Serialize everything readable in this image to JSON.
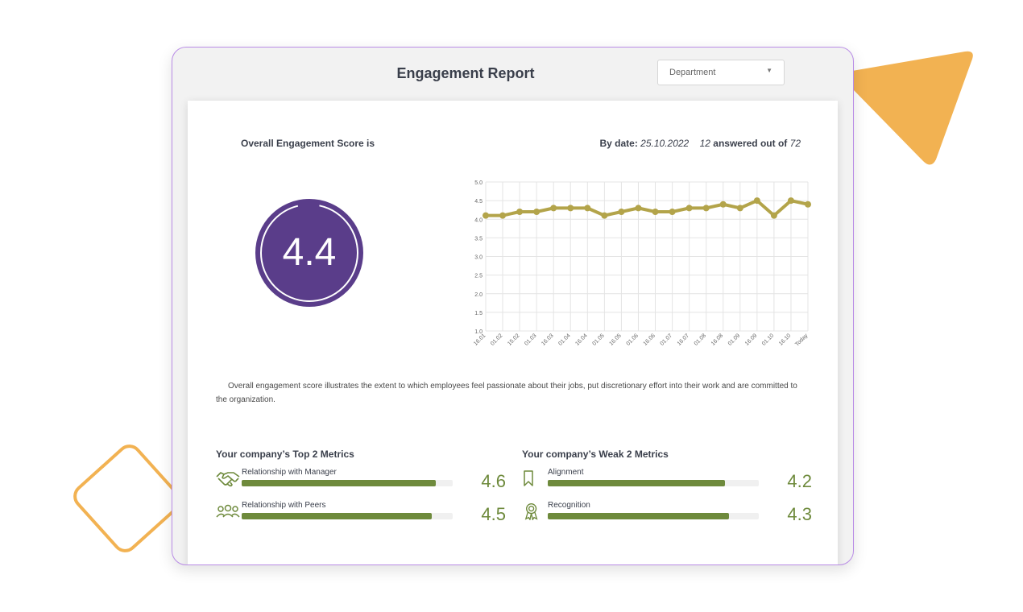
{
  "header": {
    "title": "Engagement Report",
    "department_placeholder": "Department"
  },
  "score": {
    "title": "Overall Engagement Score is",
    "value": "4.4",
    "by_date_label": "By date:",
    "date": "25.10.2022",
    "answered": "12",
    "answered_text": "answered out of",
    "total": "72"
  },
  "chart_data": {
    "type": "line",
    "categories": [
      "16.01",
      "01.02",
      "15.02",
      "01.03",
      "16.03",
      "01.04",
      "16.04",
      "01.05",
      "16.05",
      "01.06",
      "16.06",
      "01.07",
      "16.07",
      "01.08",
      "16.08",
      "01.09",
      "16.09",
      "01.10",
      "16.10",
      "Today"
    ],
    "series": [
      {
        "name": "Engagement score",
        "values": [
          4.1,
          4.1,
          4.2,
          4.2,
          4.3,
          4.3,
          4.3,
          4.1,
          4.2,
          4.3,
          4.2,
          4.2,
          4.3,
          4.3,
          4.4,
          4.3,
          4.5,
          4.1,
          4.5,
          4.4
        ]
      }
    ],
    "y_ticks": [
      "1.0",
      "1.5",
      "2.0",
      "2.5",
      "3.0",
      "3.5",
      "4.0",
      "4.5",
      "5.0"
    ],
    "ylim": [
      1.0,
      5.0
    ],
    "grid": true,
    "line_color": "#b3a44a"
  },
  "description": "Overall engagement score illustrates the extent to which employees feel passionate about their jobs, put discretionary effort into their work and are committed to the organization.",
  "top_metrics": {
    "title": "Your company’s Top 2 Metrics",
    "items": [
      {
        "label": "Relationship with Manager",
        "value": "4.6",
        "fill": 0.92,
        "icon": "handshake-icon"
      },
      {
        "label": "Relationship with Peers",
        "value": "4.5",
        "fill": 0.9,
        "icon": "people-icon"
      }
    ]
  },
  "weak_metrics": {
    "title": "Your company’s Weak 2 Metrics",
    "items": [
      {
        "label": "Alignment",
        "value": "4.2",
        "fill": 0.84,
        "icon": "bookmark-icon"
      },
      {
        "label": "Recognition",
        "value": "4.3",
        "fill": 0.86,
        "icon": "award-icon"
      }
    ]
  },
  "colors": {
    "accent": "#5a3d8a",
    "metric": "#6e8a3c"
  }
}
